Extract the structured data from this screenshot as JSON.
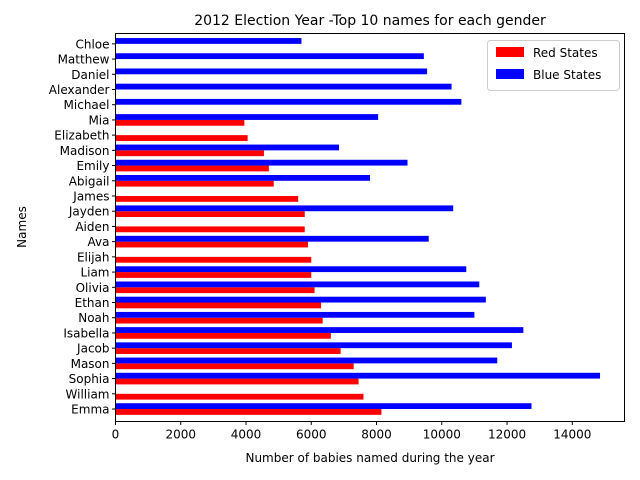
{
  "chart_data": {
    "type": "bar",
    "orientation": "horizontal",
    "title": "2012 Election Year -Top 10 names for each gender",
    "xlabel": "Number of babies named during the year",
    "ylabel": "Names",
    "xlim": [
      0,
      15600
    ],
    "xticks": [
      0,
      2000,
      4000,
      6000,
      8000,
      10000,
      12000,
      14000
    ],
    "grid": false,
    "legend_position": "top-right",
    "categories": [
      "Emma",
      "William",
      "Sophia",
      "Mason",
      "Jacob",
      "Isabella",
      "Noah",
      "Ethan",
      "Olivia",
      "Liam",
      "Elijah",
      "Ava",
      "Aiden",
      "Jayden",
      "James",
      "Abigail",
      "Emily",
      "Madison",
      "Elizabeth",
      "Mia",
      "Michael",
      "Alexander",
      "Daniel",
      "Matthew",
      "Chloe"
    ],
    "series": [
      {
        "name": "Red States",
        "color": "#ff0000",
        "values": [
          8150,
          7600,
          7450,
          7300,
          6900,
          6600,
          6350,
          6300,
          6100,
          6000,
          6000,
          5900,
          5800,
          5800,
          5600,
          4850,
          4700,
          4550,
          4050,
          3950,
          0,
          0,
          0,
          0,
          0
        ]
      },
      {
        "name": "Blue States",
        "color": "#0000ff",
        "values": [
          12750,
          0,
          14850,
          11700,
          12150,
          12500,
          11000,
          11350,
          11150,
          10750,
          0,
          9600,
          0,
          10350,
          0,
          7800,
          8950,
          6850,
          0,
          8050,
          10600,
          10300,
          9550,
          9450,
          5700
        ]
      }
    ]
  }
}
